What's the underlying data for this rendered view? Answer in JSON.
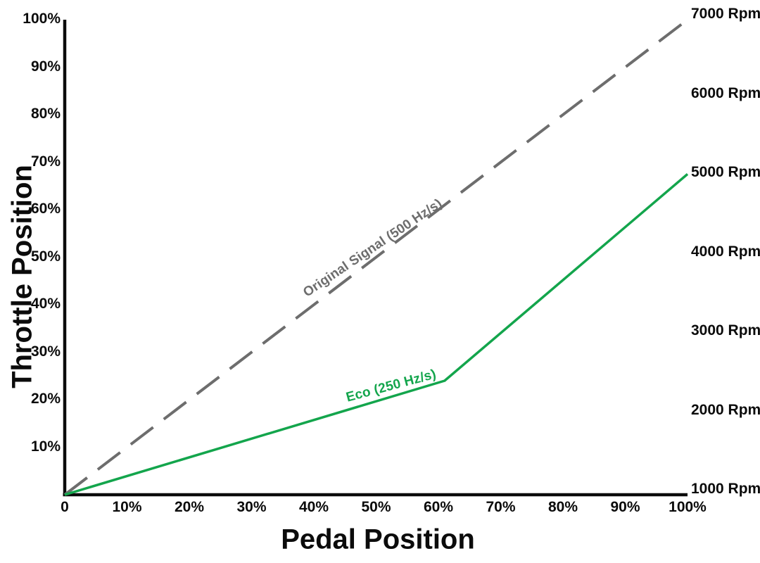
{
  "chart_data": {
    "type": "line",
    "title": "",
    "xlabel": "Pedal Position",
    "ylabel": "Throttle Position",
    "xlim": [
      0,
      100
    ],
    "ylim": [
      0,
      100
    ],
    "grid": false,
    "legend_position": "inline-rotated-labels",
    "x_ticks": [
      {
        "value": 0,
        "label": "0"
      },
      {
        "value": 10,
        "label": "10%"
      },
      {
        "value": 20,
        "label": "20%"
      },
      {
        "value": 30,
        "label": "30%"
      },
      {
        "value": 40,
        "label": "40%"
      },
      {
        "value": 50,
        "label": "50%"
      },
      {
        "value": 60,
        "label": "60%"
      },
      {
        "value": 70,
        "label": "70%"
      },
      {
        "value": 80,
        "label": "80%"
      },
      {
        "value": 90,
        "label": "90%"
      },
      {
        "value": 100,
        "label": "100%"
      }
    ],
    "y_ticks": [
      {
        "value": 10,
        "label": "10%"
      },
      {
        "value": 20,
        "label": "20%"
      },
      {
        "value": 30,
        "label": "30%"
      },
      {
        "value": 40,
        "label": "40%"
      },
      {
        "value": 50,
        "label": "50%"
      },
      {
        "value": 60,
        "label": "60%"
      },
      {
        "value": 70,
        "label": "70%"
      },
      {
        "value": 80,
        "label": "80%"
      },
      {
        "value": 90,
        "label": "90%"
      },
      {
        "value": 100,
        "label": "100%"
      }
    ],
    "right_axis": {
      "unit": "Rpm",
      "lim": [
        1000,
        7000
      ],
      "labels": [
        {
          "value": 7000,
          "label": "7000 Rpm"
        },
        {
          "value": 6000,
          "label": "6000 Rpm"
        },
        {
          "value": 5000,
          "label": "5000 Rpm"
        },
        {
          "value": 4000,
          "label": "4000 Rpm"
        },
        {
          "value": 3000,
          "label": "3000 Rpm"
        },
        {
          "value": 2000,
          "label": "2000 Rpm"
        },
        {
          "value": 1000,
          "label": "1000 Rpm"
        }
      ]
    },
    "series": [
      {
        "name": "Original Signal (500 Hz/s)",
        "color": "#6d6d6d",
        "style": "dashed",
        "points": [
          {
            "x": 0,
            "y": 0
          },
          {
            "x": 100,
            "y": 100
          }
        ]
      },
      {
        "name": "Eco (250 Hz/s)",
        "color": "#13a54c",
        "style": "solid",
        "points": [
          {
            "x": 0,
            "y": 0
          },
          {
            "x": 61,
            "y": 24
          },
          {
            "x": 100,
            "y": 67.5
          }
        ]
      }
    ]
  },
  "colors": {
    "background": "#ffffff",
    "axis": "#0b0b0b",
    "original_signal": "#6d6d6d",
    "eco": "#13a54c"
  }
}
